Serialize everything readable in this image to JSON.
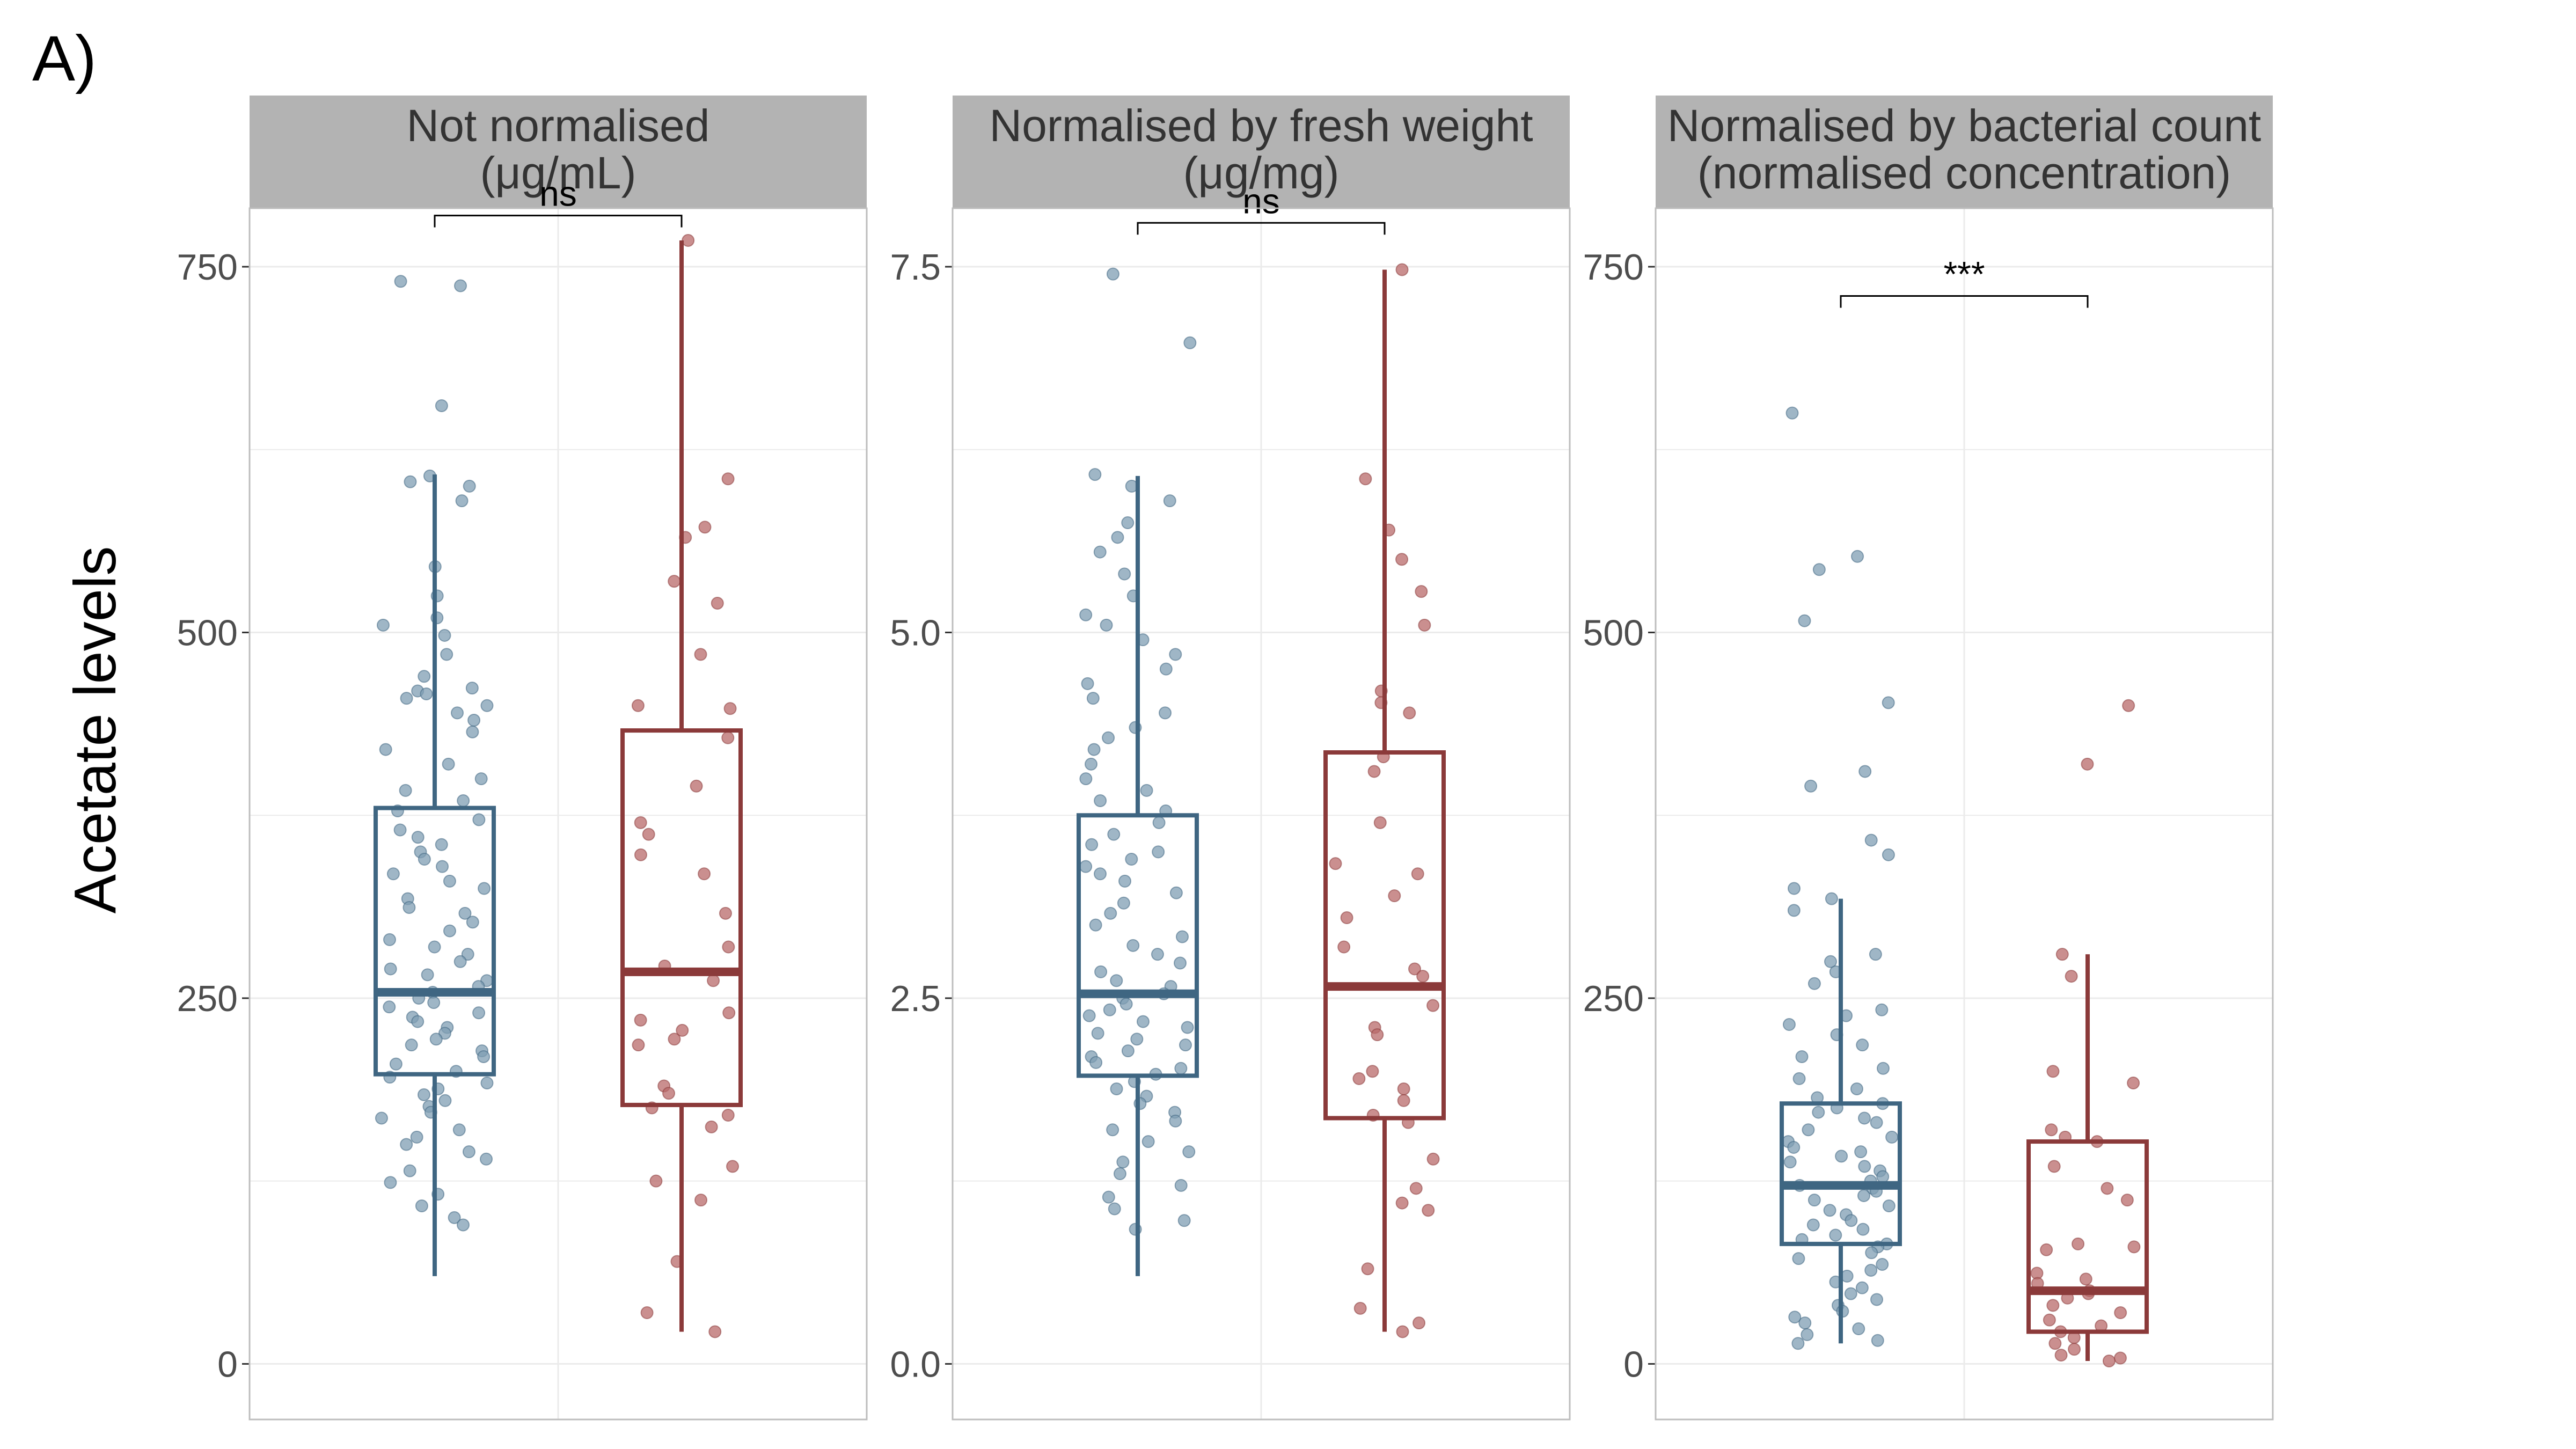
{
  "figure": {
    "panel_label": "A)",
    "ylabel": "Acetate levels",
    "colors": {
      "group1": "#3f6682",
      "group1_points": "#7f9db3",
      "group2": "#8b3a3a",
      "group2_points": "#b86a6a",
      "strip": "#b3b3b3",
      "grid": "#ebebeb"
    }
  },
  "chart_data": [
    {
      "type": "box",
      "title_lines": [
        "Not normalised",
        "(μg/mL)"
      ],
      "ylim": [
        -38,
        790
      ],
      "yticks": [
        0,
        250,
        500,
        750
      ],
      "ytick_labels": [
        "0",
        "250",
        "500",
        "750"
      ],
      "significance": "ns",
      "bracket_y": 785,
      "groups": [
        {
          "name": "",
          "box": {
            "whisker_low": 60,
            "q1": 198,
            "median": 254,
            "q3": 380,
            "whisker_high": 608
          },
          "points": [
            740,
            737,
            655,
            607,
            603,
            600,
            590,
            545,
            525,
            510,
            505,
            498,
            485,
            470,
            462,
            460,
            458,
            455,
            450,
            445,
            440,
            432,
            420,
            410,
            400,
            392,
            385,
            378,
            372,
            365,
            360,
            355,
            350,
            345,
            340,
            335,
            330,
            325,
            318,
            312,
            308,
            302,
            296,
            290,
            285,
            280,
            275,
            270,
            266,
            262,
            258,
            254,
            250,
            247,
            244,
            240,
            237,
            234,
            230,
            226,
            222,
            218,
            214,
            210,
            205,
            200,
            196,
            192,
            188,
            184,
            180,
            176,
            172,
            168,
            160,
            155,
            150,
            145,
            140,
            132,
            124,
            116,
            108,
            100,
            95
          ]
        },
        {
          "name": "",
          "box": {
            "whisker_low": 22,
            "q1": 177,
            "median": 268,
            "q3": 433,
            "whisker_high": 768
          },
          "points": [
            768,
            605,
            572,
            565,
            535,
            520,
            485,
            450,
            448,
            428,
            395,
            370,
            362,
            348,
            335,
            308,
            285,
            272,
            262,
            240,
            235,
            228,
            222,
            218,
            190,
            185,
            175,
            170,
            162,
            135,
            125,
            112,
            70,
            35,
            22
          ]
        }
      ]
    },
    {
      "type": "box",
      "title_lines": [
        "Normalised by fresh weight",
        "(μg/mg)"
      ],
      "ylim": [
        -0.38,
        7.9
      ],
      "yticks": [
        0.0,
        2.5,
        5.0,
        7.5
      ],
      "ytick_labels": [
        "0.0",
        "2.5",
        "5.0",
        "7.5"
      ],
      "significance": "ns",
      "bracket_y": 7.8,
      "groups": [
        {
          "name": "",
          "box": {
            "whisker_low": 0.6,
            "q1": 1.97,
            "median": 2.53,
            "q3": 3.75,
            "whisker_high": 6.07
          },
          "points": [
            7.45,
            6.98,
            6.08,
            6.0,
            5.9,
            5.75,
            5.65,
            5.55,
            5.4,
            5.25,
            5.12,
            5.05,
            4.95,
            4.85,
            4.75,
            4.65,
            4.55,
            4.45,
            4.35,
            4.28,
            4.2,
            4.1,
            4.0,
            3.92,
            3.85,
            3.78,
            3.7,
            3.62,
            3.55,
            3.5,
            3.45,
            3.4,
            3.35,
            3.3,
            3.22,
            3.15,
            3.08,
            3.0,
            2.92,
            2.86,
            2.8,
            2.74,
            2.68,
            2.62,
            2.58,
            2.53,
            2.5,
            2.46,
            2.42,
            2.38,
            2.34,
            2.3,
            2.26,
            2.22,
            2.18,
            2.14,
            2.1,
            2.06,
            2.02,
            1.98,
            1.93,
            1.88,
            1.83,
            1.78,
            1.72,
            1.66,
            1.6,
            1.52,
            1.45,
            1.38,
            1.3,
            1.22,
            1.14,
            1.06,
            0.98,
            0.92
          ]
        },
        {
          "name": "",
          "box": {
            "whisker_low": 0.22,
            "q1": 1.68,
            "median": 2.58,
            "q3": 4.18,
            "whisker_high": 7.48
          },
          "points": [
            7.48,
            6.05,
            5.7,
            5.5,
            5.28,
            5.05,
            4.6,
            4.52,
            4.45,
            4.15,
            4.05,
            3.7,
            3.42,
            3.35,
            3.2,
            3.05,
            2.85,
            2.7,
            2.65,
            2.45,
            2.3,
            2.25,
            2.0,
            1.95,
            1.88,
            1.8,
            1.7,
            1.65,
            1.4,
            1.2,
            1.1,
            1.05,
            0.65,
            0.38,
            0.28,
            0.22
          ]
        }
      ]
    },
    {
      "type": "box",
      "title_lines": [
        "Normalised by bacterial count",
        "(normalised concentration)"
      ],
      "ylim": [
        -38,
        790
      ],
      "yticks": [
        0,
        250,
        500,
        750
      ],
      "ytick_labels": [
        "0",
        "250",
        "500",
        "750"
      ],
      "significance": "***",
      "bracket_y": 730,
      "groups": [
        {
          "name": "",
          "box": {
            "whisker_low": 14,
            "q1": 82,
            "median": 122,
            "q3": 178,
            "whisker_high": 318
          },
          "points": [
            650,
            552,
            543,
            508,
            452,
            405,
            395,
            358,
            348,
            325,
            318,
            310,
            280,
            275,
            268,
            260,
            242,
            238,
            232,
            225,
            218,
            210,
            202,
            195,
            188,
            182,
            178,
            175,
            172,
            168,
            165,
            160,
            155,
            152,
            148,
            145,
            142,
            138,
            135,
            132,
            128,
            125,
            122,
            120,
            118,
            115,
            112,
            108,
            105,
            102,
            98,
            95,
            92,
            88,
            85,
            82,
            80,
            76,
            72,
            68,
            64,
            60,
            56,
            52,
            48,
            44,
            40,
            36,
            32,
            28,
            24,
            20,
            16,
            14
          ]
        },
        {
          "name": "",
          "box": {
            "whisker_low": 2,
            "q1": 22,
            "median": 50,
            "q3": 152,
            "whisker_high": 280
          },
          "points": [
            450,
            410,
            280,
            265,
            200,
            192,
            160,
            155,
            152,
            135,
            120,
            112,
            82,
            80,
            78,
            62,
            58,
            55,
            50,
            48,
            45,
            40,
            35,
            30,
            26,
            22,
            18,
            14,
            10,
            6,
            4,
            2
          ]
        }
      ]
    }
  ]
}
